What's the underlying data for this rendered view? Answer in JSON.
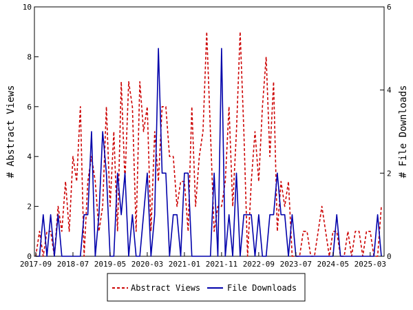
{
  "chart_data": {
    "type": "line",
    "x": [
      "2017-09",
      "2017-10",
      "2017-11",
      "2017-12",
      "2018-01",
      "2018-02",
      "2018-03",
      "2018-04",
      "2018-05",
      "2018-06",
      "2018-07",
      "2018-08",
      "2018-09",
      "2018-10",
      "2018-11",
      "2018-12",
      "2019-01",
      "2019-02",
      "2019-03",
      "2019-04",
      "2019-05",
      "2019-06",
      "2019-07",
      "2019-08",
      "2019-09",
      "2019-10",
      "2019-11",
      "2019-12",
      "2020-01",
      "2020-02",
      "2020-03",
      "2020-04",
      "2020-05",
      "2020-06",
      "2020-07",
      "2020-08",
      "2020-09",
      "2020-10",
      "2020-11",
      "2020-12",
      "2021-01",
      "2021-02",
      "2021-03",
      "2021-04",
      "2021-05",
      "2021-06",
      "2021-07",
      "2021-08",
      "2021-09",
      "2021-10",
      "2021-11",
      "2021-12",
      "2022-01",
      "2022-02",
      "2022-03",
      "2022-04",
      "2022-05",
      "2022-06",
      "2022-07",
      "2022-08",
      "2022-09",
      "2022-10",
      "2022-11",
      "2022-12",
      "2023-01",
      "2023-02",
      "2023-03",
      "2023-04",
      "2023-05",
      "2023-06",
      "2023-07",
      "2023-08",
      "2023-09",
      "2023-10",
      "2023-11",
      "2023-12",
      "2024-01",
      "2024-02",
      "2024-03",
      "2024-04",
      "2024-05",
      "2024-06",
      "2024-07",
      "2024-08",
      "2024-09",
      "2024-10",
      "2024-11",
      "2024-12",
      "2025-01",
      "2025-02",
      "2025-03",
      "2025-04",
      "2025-05",
      "2025-06"
    ],
    "x_tick_labels": [
      "2017-09",
      "2018-07",
      "2019-05",
      "2020-03",
      "2021-01",
      "2021-11",
      "2022-09",
      "2023-07",
      "2024-05",
      "2025-03"
    ],
    "series": [
      {
        "name": "Abstract Views",
        "axis": "left",
        "color": "#cc0000",
        "style": "dashed",
        "values": [
          0,
          1,
          0,
          1,
          1,
          0,
          2,
          1,
          3,
          1,
          4,
          3,
          6,
          0,
          3,
          4,
          3,
          1,
          2,
          6,
          2,
          5,
          1,
          7,
          3,
          7,
          6,
          1,
          7,
          5,
          6,
          1,
          5,
          3,
          6,
          6,
          4,
          4,
          2,
          3,
          3,
          1,
          6,
          2,
          4,
          5,
          9,
          5,
          1,
          2,
          2,
          3,
          6,
          2,
          5,
          9,
          5,
          0,
          3,
          5,
          3,
          6,
          8,
          4,
          7,
          1,
          3,
          2,
          3,
          0,
          0,
          0,
          1,
          1,
          0,
          0,
          1,
          2,
          1,
          0,
          1,
          1,
          0,
          0,
          1,
          0,
          1,
          1,
          0,
          1,
          1,
          0,
          0,
          2
        ]
      },
      {
        "name": "File Downloads",
        "axis": "right",
        "color": "#0000aa",
        "style": "solid",
        "values": [
          0,
          0,
          1,
          0,
          1,
          0,
          1,
          0,
          0,
          0,
          0,
          0,
          0,
          1,
          1,
          3,
          0,
          1,
          3,
          2,
          0,
          0,
          2,
          1,
          2,
          0,
          1,
          0,
          0,
          1,
          2,
          0,
          1,
          5,
          2,
          2,
          0,
          1,
          1,
          0,
          2,
          2,
          0,
          0,
          0,
          0,
          0,
          0,
          2,
          0,
          5,
          0,
          1,
          0,
          2,
          0,
          1,
          1,
          1,
          0,
          1,
          0,
          0,
          1,
          1,
          2,
          1,
          1,
          0,
          1,
          0,
          0,
          0,
          0,
          0,
          0,
          0,
          0,
          0,
          0,
          0,
          1,
          0,
          0,
          0,
          0,
          0,
          0,
          0,
          0,
          0,
          0,
          1,
          0
        ]
      }
    ],
    "ylabel": "# Abstract Views",
    "y2label": "# File Downloads",
    "ylim": [
      0,
      10
    ],
    "y2lim": [
      0,
      6
    ],
    "y_ticks": [
      0,
      2,
      4,
      6,
      8,
      10
    ],
    "y2_ticks": [
      0,
      2,
      4,
      6
    ],
    "grid": false,
    "legend_position": "bottom-center"
  }
}
